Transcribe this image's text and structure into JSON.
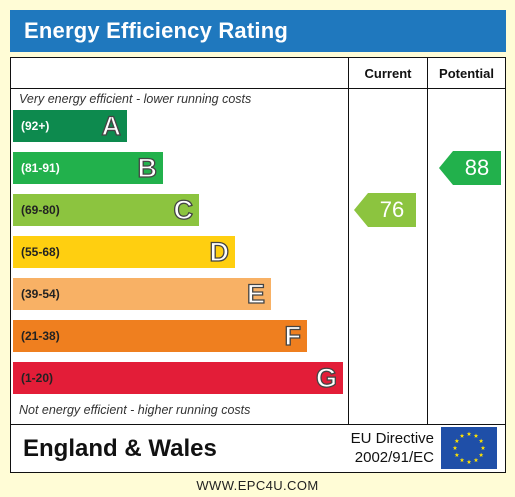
{
  "title": "Energy Efficiency Rating",
  "columns": {
    "current": "Current",
    "potential": "Potential"
  },
  "notes": {
    "top": "Very energy efficient - lower running costs",
    "bottom": "Not energy efficient - higher running costs"
  },
  "footer": {
    "region": "England & Wales",
    "directive_line1": "EU Directive",
    "directive_line2": "2002/91/EC",
    "url": "WWW.EPC4U.COM"
  },
  "colors": {
    "title_bar": "#1f78be",
    "background": "#fffcd6",
    "eu_flag": "#1f4fa8",
    "eu_star": "#ffe200"
  },
  "chart_data": {
    "type": "bar",
    "title": "Energy Efficiency Rating",
    "categories": [
      "A",
      "B",
      "C",
      "D",
      "E",
      "F",
      "G"
    ],
    "bands": [
      {
        "letter": "A",
        "range": "(92+)",
        "color": "#0d8a4e",
        "light_text": true
      },
      {
        "letter": "B",
        "range": "(81-91)",
        "color": "#22b14c",
        "light_text": true
      },
      {
        "letter": "C",
        "range": "(69-80)",
        "color": "#8cc43f",
        "light_text": false
      },
      {
        "letter": "D",
        "range": "(55-68)",
        "color": "#ffcf10",
        "light_text": false
      },
      {
        "letter": "E",
        "range": "(39-54)",
        "color": "#f8b165",
        "light_text": false
      },
      {
        "letter": "F",
        "range": "(21-38)",
        "color": "#ef7f1f",
        "light_text": false
      },
      {
        "letter": "G",
        "range": "(1-20)",
        "color": "#e31d38",
        "light_text": false
      }
    ],
    "series": [
      {
        "name": "Current",
        "value": 76,
        "band": "C",
        "color": "#8cc43f"
      },
      {
        "name": "Potential",
        "value": 88,
        "band": "B",
        "color": "#22b14c"
      }
    ]
  }
}
